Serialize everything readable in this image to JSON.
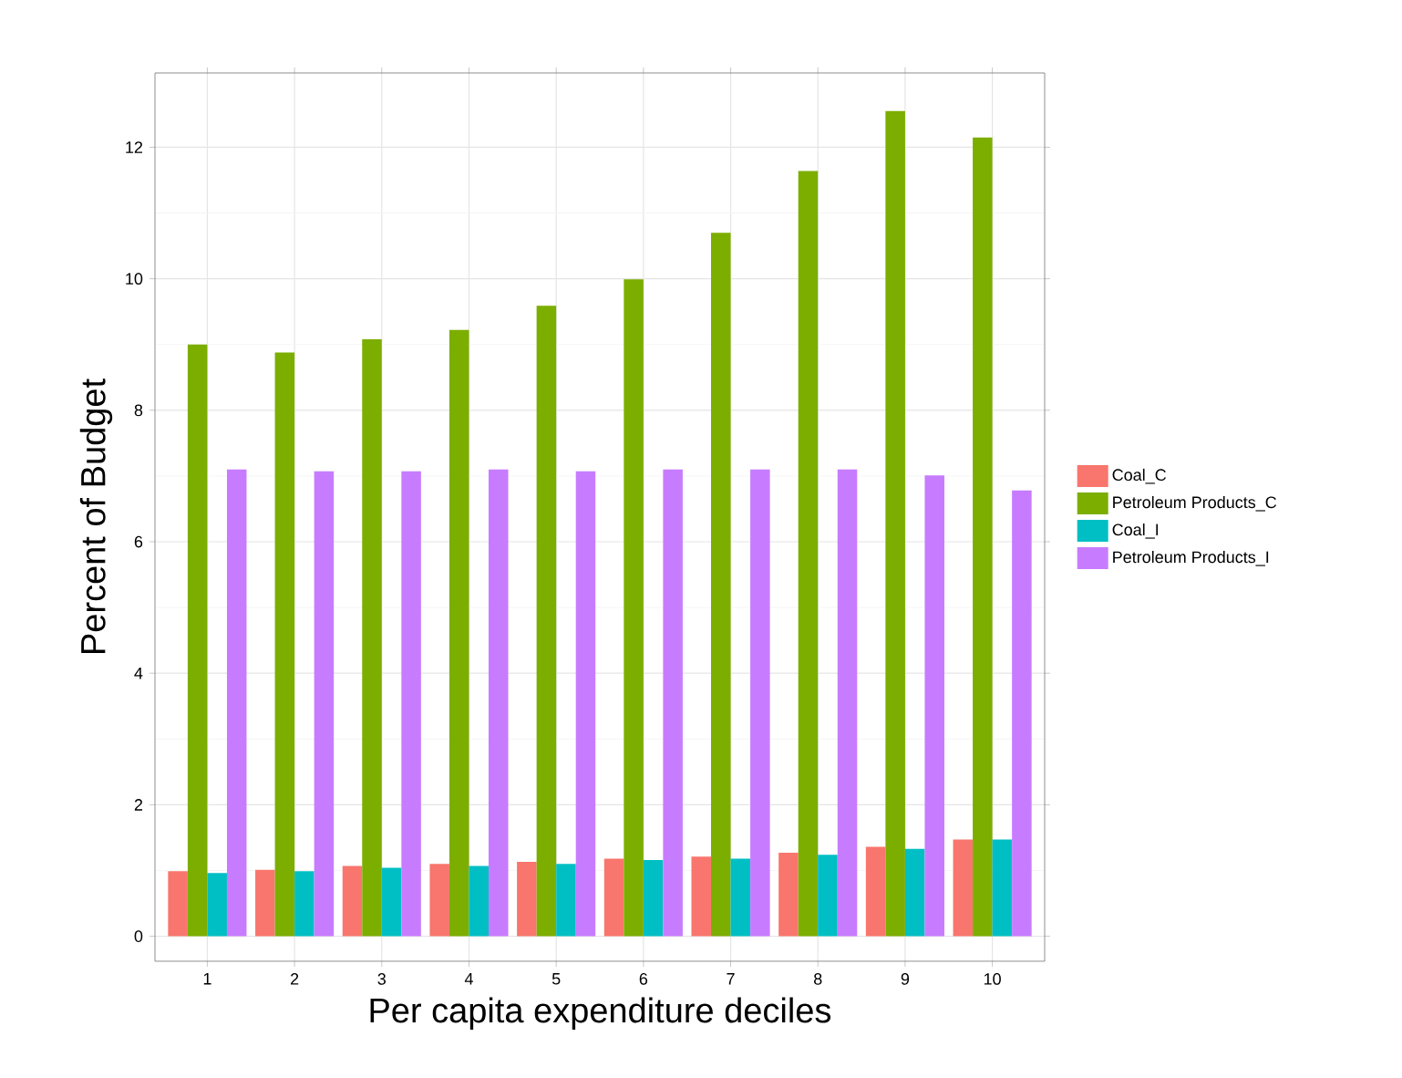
{
  "chart_data": {
    "type": "bar",
    "xlabel": "Per capita expenditure deciles",
    "ylabel": "Percent of Budget",
    "categories": [
      "1",
      "2",
      "3",
      "4",
      "5",
      "6",
      "7",
      "8",
      "9",
      "10"
    ],
    "series": [
      {
        "name": "Coal_C",
        "color": "#f8766d",
        "values": [
          0.99,
          1.01,
          1.07,
          1.1,
          1.13,
          1.18,
          1.21,
          1.27,
          1.36,
          1.47
        ]
      },
      {
        "name": "Petroleum Products_C",
        "color": "#7cae00",
        "values": [
          9.0,
          8.88,
          9.08,
          9.22,
          9.59,
          9.99,
          10.7,
          11.64,
          12.55,
          12.15
        ]
      },
      {
        "name": "Coal_I",
        "color": "#00bfc4",
        "values": [
          0.96,
          0.99,
          1.04,
          1.07,
          1.1,
          1.16,
          1.18,
          1.24,
          1.33,
          1.47
        ]
      },
      {
        "name": "Petroleum Products_I",
        "color": "#c77cff",
        "values": [
          7.1,
          7.07,
          7.07,
          7.1,
          7.07,
          7.1,
          7.1,
          7.1,
          7.01,
          6.78
        ]
      }
    ],
    "ylim": [
      -0.38,
      13.13
    ],
    "yticks": [
      0,
      2,
      4,
      6,
      8,
      10,
      12
    ],
    "grid": true,
    "legend": "right"
  }
}
